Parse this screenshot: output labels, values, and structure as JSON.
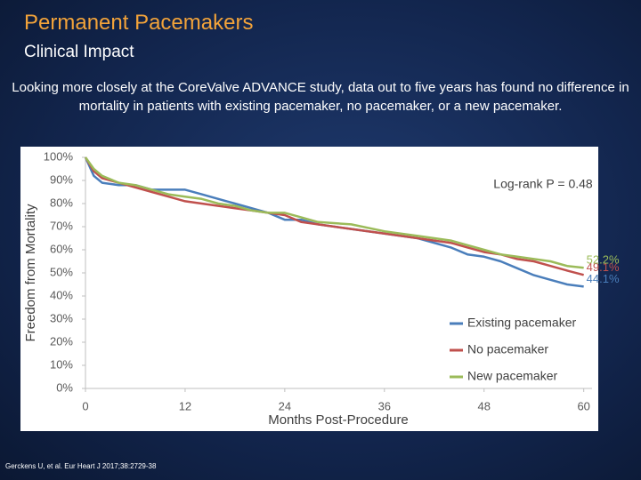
{
  "slide": {
    "title": "Permanent Pacemakers",
    "subtitle": "Clinical Impact",
    "body": "Looking more closely at the CoreValve ADVANCE study, data out to five years has found no difference in mortality in patients with existing pacemaker, no pacemaker, or a new pacemaker.",
    "source": "Gerckens U, et al. Eur Heart J 2017;38:2729-38"
  },
  "chart_data": {
    "type": "line",
    "x_label": "Months Post-Procedure",
    "y_label": "Freedom from Mortality",
    "annotation": "Log-rank P = 0.48",
    "x": [
      0,
      1,
      2,
      4,
      6,
      8,
      10,
      12,
      14,
      16,
      18,
      20,
      22,
      24,
      26,
      28,
      32,
      36,
      40,
      44,
      46,
      48,
      50,
      52,
      54,
      56,
      58,
      60
    ],
    "series": [
      {
        "name": "Existing pacemaker",
        "color": "#4a7ebb",
        "values": [
          100,
          92,
          89,
          88,
          88,
          86,
          86,
          86,
          84,
          82,
          80,
          78,
          76,
          73,
          73,
          71,
          69,
          67,
          65,
          61,
          58,
          57,
          55,
          52,
          49,
          47,
          45,
          44.1
        ],
        "value_labels": [
          null,
          null,
          null,
          null,
          null,
          null,
          null,
          null,
          null,
          null,
          null,
          null,
          null,
          null,
          null,
          null,
          null,
          null,
          null,
          null,
          null,
          null,
          null,
          null,
          null,
          null,
          null,
          "44.1%"
        ]
      },
      {
        "name": "No pacemaker",
        "color": "#c0504d",
        "values": [
          100,
          94,
          91,
          89,
          87,
          85,
          83,
          81,
          80,
          79,
          78,
          77,
          76,
          75,
          72,
          71,
          69,
          67,
          65,
          63,
          61,
          59,
          58,
          56,
          55,
          53,
          51,
          49.1
        ],
        "value_labels": [
          null,
          null,
          null,
          null,
          null,
          null,
          null,
          null,
          null,
          null,
          null,
          null,
          null,
          null,
          null,
          null,
          null,
          null,
          null,
          null,
          null,
          null,
          null,
          null,
          null,
          null,
          null,
          "49.1%"
        ]
      },
      {
        "name": "New pacemaker",
        "color": "#9bbb59",
        "values": [
          100,
          95,
          92,
          89,
          88,
          86,
          84,
          83,
          82,
          80,
          79,
          77,
          76,
          76,
          74,
          72,
          71,
          68,
          66,
          64,
          62,
          60,
          58,
          57,
          56,
          55,
          53,
          52.2
        ],
        "value_labels": [
          null,
          null,
          null,
          null,
          null,
          null,
          null,
          null,
          null,
          null,
          null,
          null,
          null,
          null,
          null,
          null,
          null,
          null,
          null,
          null,
          null,
          null,
          null,
          null,
          null,
          null,
          null,
          "52.2%"
        ]
      }
    ],
    "xlim": [
      0,
      61
    ],
    "xticks": [
      0,
      12,
      24,
      36,
      48,
      60
    ],
    "ylim": [
      0,
      100
    ],
    "yticks": [
      {
        "value": 0,
        "label": "0%"
      },
      {
        "value": 10,
        "label": "10%"
      },
      {
        "value": 20,
        "label": "20%"
      },
      {
        "value": 30,
        "label": "30%"
      },
      {
        "value": 40,
        "label": "40%"
      },
      {
        "value": 50,
        "label": "50%"
      },
      {
        "value": 60,
        "label": "60%"
      },
      {
        "value": 70,
        "label": "70%"
      },
      {
        "value": 80,
        "label": "80%"
      },
      {
        "value": 90,
        "label": "90%"
      },
      {
        "value": 100,
        "label": "100%"
      }
    ],
    "grid": false
  }
}
